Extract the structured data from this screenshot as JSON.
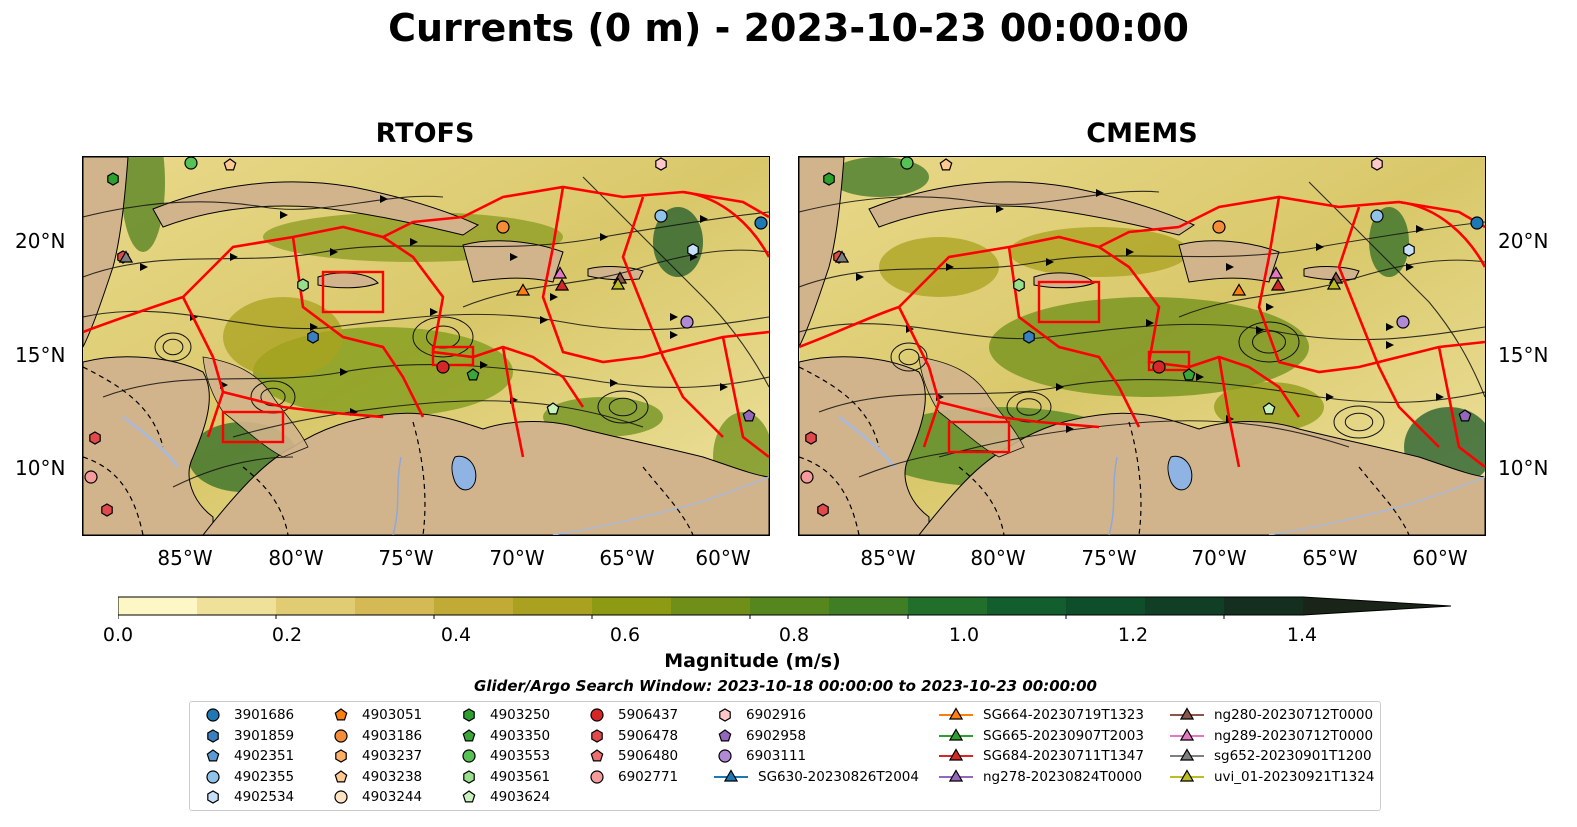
{
  "title": "Currents (0 m) - 2023-10-23 00:00:00",
  "panels": [
    {
      "title": "RTOFS"
    },
    {
      "title": "CMEMS"
    }
  ],
  "axes": {
    "lat_labels": [
      "20°N",
      "15°N",
      "10°N"
    ],
    "lon_labels": [
      "85°W",
      "80°W",
      "75°W",
      "70°W",
      "65°W",
      "60°W"
    ]
  },
  "colorbar": {
    "label": "Magnitude (m/s)",
    "ticks": [
      "0.0",
      "0.2",
      "0.4",
      "0.6",
      "0.8",
      "1.0",
      "1.2",
      "1.4"
    ],
    "range": [
      0,
      1.5
    ],
    "extend": "max",
    "colors": [
      "#fdf7c5",
      "#f0e19a",
      "#e2cc73",
      "#d4b954",
      "#c2aa36",
      "#a9a11f",
      "#8d9a14",
      "#6f8f18",
      "#56871f",
      "#3f7e24",
      "#226f2c",
      "#135e2f",
      "#0f4e2a",
      "#103f26",
      "#142e20",
      "#1a2418"
    ]
  },
  "search_window": "Glider/Argo Search Window: 2023-10-18 00:00:00 to 2023-10-23 00:00:00",
  "legend": [
    {
      "label": "3901686",
      "marker": "circle",
      "color": "#1f77b4"
    },
    {
      "label": "3901859",
      "marker": "hexagon",
      "color": "#3a7fc0"
    },
    {
      "label": "4902351",
      "marker": "pentagon",
      "color": "#5a9bd5"
    },
    {
      "label": "4902355",
      "marker": "circle",
      "color": "#8fc3ec"
    },
    {
      "label": "4902534",
      "marker": "hexagon-outline",
      "color": "#c5e0f8"
    },
    {
      "label": "4903051",
      "marker": "pentagon",
      "color": "#ff7f0e"
    },
    {
      "label": "4903186",
      "marker": "circle",
      "color": "#f58c3a"
    },
    {
      "label": "4903237",
      "marker": "hexagon",
      "color": "#ffb066"
    },
    {
      "label": "4903238",
      "marker": "pentagon",
      "color": "#ffc98f"
    },
    {
      "label": "4903244",
      "marker": "circle",
      "color": "#ffe3c2"
    },
    {
      "label": "4903250",
      "marker": "hexagon",
      "color": "#2ca02c"
    },
    {
      "label": "4903350",
      "marker": "pentagon",
      "color": "#3aa838"
    },
    {
      "label": "4903553",
      "marker": "circle",
      "color": "#56c256"
    },
    {
      "label": "4903561",
      "marker": "hexagon",
      "color": "#98df8a"
    },
    {
      "label": "4903624",
      "marker": "pentagon",
      "color": "#c8f2bd"
    },
    {
      "label": "5906437",
      "marker": "circle",
      "color": "#d62728"
    },
    {
      "label": "5906478",
      "marker": "hexagon",
      "color": "#e04a4a"
    },
    {
      "label": "5906480",
      "marker": "pentagon",
      "color": "#ee6f6f"
    },
    {
      "label": "6902771",
      "marker": "circle",
      "color": "#f49b9b"
    },
    {
      "label": "6902916",
      "marker": "hexagon",
      "color": "#ffc8c8"
    },
    {
      "label": "6902958",
      "marker": "pentagon",
      "color": "#9467bd"
    },
    {
      "label": "6903111",
      "marker": "circle",
      "color": "#b08ad4"
    },
    {
      "label": "SG630-20230826T2004",
      "marker": "triangle-line",
      "color": "#1f77b4"
    },
    {
      "label": "SG664-20230719T1323",
      "marker": "triangle-line",
      "color": "#ff7f0e"
    },
    {
      "label": "SG665-20230907T2003",
      "marker": "triangle-line",
      "color": "#2ca02c"
    },
    {
      "label": "SG684-20230711T1347",
      "marker": "triangle-line",
      "color": "#d62728"
    },
    {
      "label": "ng278-20230824T0000",
      "marker": "triangle-line",
      "color": "#9467bd"
    },
    {
      "label": "ng280-20230712T0000",
      "marker": "triangle-line",
      "color": "#8c564b"
    },
    {
      "label": "ng289-20230712T0000",
      "marker": "triangle-line",
      "color": "#e377c2"
    },
    {
      "label": "sg652-20230901T1200",
      "marker": "triangle-line",
      "color": "#7f7f7f"
    },
    {
      "label": "uvi_01-20230921T1324",
      "marker": "triangle-line",
      "color": "#bcbd22"
    }
  ]
}
